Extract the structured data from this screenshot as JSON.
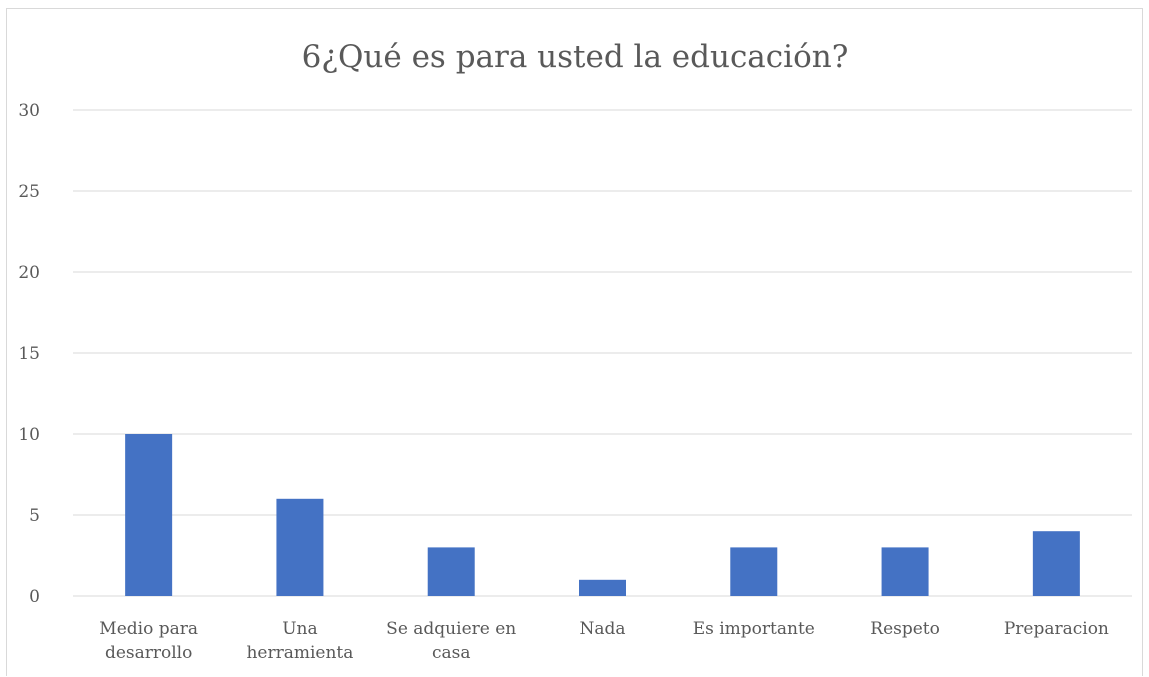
{
  "chart_data": {
    "type": "bar",
    "title": "6¿Qué es para usted la educación?",
    "xlabel": "",
    "ylabel": "",
    "categories": [
      [
        "Medio para",
        "desarrollo"
      ],
      [
        "Una",
        "herramienta"
      ],
      [
        "Se adquiere en",
        "casa"
      ],
      [
        "Nada"
      ],
      [
        "Es importante"
      ],
      [
        "Respeto"
      ],
      [
        "Preparacion"
      ]
    ],
    "values": [
      10,
      6,
      3,
      1,
      3,
      3,
      4
    ],
    "ylim": [
      0,
      30
    ],
    "yticks": [
      0,
      5,
      10,
      15,
      20,
      25,
      30
    ],
    "grid": true,
    "legend": "none",
    "bar_color": "#4472c4"
  }
}
